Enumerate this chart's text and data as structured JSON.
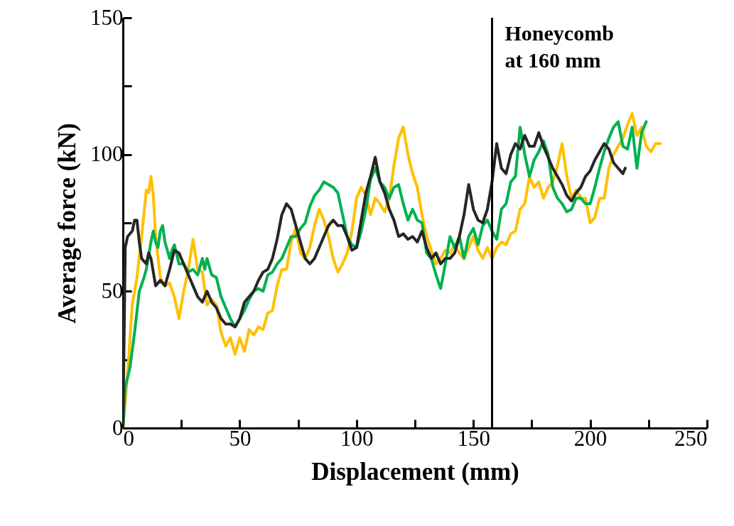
{
  "chart_data": {
    "type": "line",
    "xlabel": "Displacement (mm)",
    "ylabel": "Average force (kN)",
    "xlim": [
      0,
      250
    ],
    "ylim": [
      0,
      150
    ],
    "xticks": [
      0,
      {
        "value": 25,
        "label": null
      },
      50,
      {
        "value": 75,
        "label": null
      },
      100,
      {
        "value": 125,
        "label": null
      },
      150,
      {
        "value": 175,
        "label": null
      },
      200,
      {
        "value": 225,
        "label": null
      },
      250
    ],
    "yticks": [
      0,
      {
        "value": 25,
        "label": null
      },
      50,
      {
        "value": 75,
        "label": null
      },
      100,
      {
        "value": 125,
        "label": null
      },
      150
    ],
    "grid": false,
    "legend": false,
    "marker": "none",
    "line_style": "solid",
    "ref_lines": [
      {
        "axis": "x",
        "value": 158,
        "label": "Honeycomb\nat 160 mm",
        "color": "#000000"
      }
    ],
    "series": [
      {
        "color": "#ffc000",
        "x": [
          0,
          2,
          4,
          6,
          8,
          10,
          11,
          12,
          13,
          14,
          16,
          18,
          20,
          22,
          24,
          26,
          28,
          30,
          32,
          34,
          36,
          38,
          40,
          42,
          44,
          46,
          48,
          50,
          52,
          54,
          56,
          58,
          60,
          62,
          64,
          66,
          68,
          70,
          72,
          74,
          76,
          78,
          80,
          82,
          84,
          86,
          88,
          90,
          92,
          94,
          96,
          98,
          100,
          102,
          104,
          106,
          108,
          110,
          112,
          114,
          116,
          118,
          120,
          122,
          124,
          126,
          128,
          130,
          132,
          134,
          136,
          138,
          140,
          142,
          144,
          146,
          148,
          150,
          152,
          154,
          156,
          158,
          160,
          162,
          164,
          166,
          168,
          170,
          172,
          174,
          176,
          178,
          180,
          182,
          184,
          186,
          188,
          190,
          192,
          194,
          196,
          198,
          200,
          202,
          204,
          206,
          208,
          210,
          212,
          214,
          216,
          218,
          220,
          222,
          224,
          226,
          228,
          230
        ],
        "values": [
          0,
          20,
          45,
          55,
          70,
          87,
          86,
          92,
          85,
          70,
          55,
          52,
          53,
          48,
          40,
          50,
          58,
          69,
          58,
          57,
          45,
          47,
          45,
          35,
          30,
          33,
          27,
          33,
          28,
          36,
          34,
          37,
          36,
          42,
          43,
          52,
          58,
          58,
          68,
          73,
          64,
          62,
          66,
          74,
          80,
          76,
          70,
          62,
          57,
          60,
          64,
          72,
          84,
          88,
          85,
          78,
          84,
          82,
          79,
          84,
          96,
          106,
          110,
          100,
          93,
          88,
          78,
          70,
          65,
          60,
          62,
          65,
          64,
          67,
          64,
          62,
          66,
          70,
          65,
          62,
          66,
          62,
          66,
          68,
          67,
          71,
          72,
          80,
          82,
          92,
          88,
          90,
          84,
          88,
          90,
          96,
          104,
          92,
          84,
          87,
          84,
          84,
          75,
          77,
          84,
          84,
          95,
          100,
          103,
          106,
          111,
          115,
          107,
          110,
          103,
          101,
          104,
          104
        ]
      },
      {
        "color": "#00b050",
        "x": [
          0,
          1,
          3,
          5,
          7,
          9,
          10,
          12,
          13,
          14,
          15,
          16,
          17,
          18,
          20,
          21,
          22,
          24,
          26,
          28,
          30,
          32,
          34,
          35,
          36,
          38,
          40,
          42,
          44,
          46,
          48,
          50,
          52,
          54,
          56,
          58,
          60,
          62,
          64,
          66,
          68,
          70,
          72,
          74,
          76,
          78,
          80,
          82,
          84,
          86,
          88,
          90,
          92,
          94,
          96,
          98,
          100,
          102,
          104,
          106,
          108,
          110,
          112,
          114,
          116,
          118,
          120,
          122,
          124,
          126,
          128,
          130,
          132,
          134,
          136,
          138,
          140,
          142,
          144,
          146,
          148,
          150,
          152,
          154,
          156,
          158,
          160,
          162,
          164,
          166,
          168,
          170,
          172,
          174,
          176,
          178,
          180,
          182,
          184,
          186,
          188,
          190,
          192,
          194,
          196,
          198,
          200,
          202,
          204,
          206,
          208,
          210,
          212,
          214,
          216,
          218,
          220,
          222,
          224
        ],
        "values": [
          0,
          15,
          22,
          35,
          50,
          55,
          58,
          68,
          72,
          68,
          66,
          72,
          74,
          68,
          62,
          65,
          67,
          60,
          60,
          57,
          58,
          56,
          62,
          58,
          62,
          56,
          55,
          48,
          44,
          40,
          37,
          40,
          43,
          47,
          50,
          51,
          50,
          56,
          57,
          60,
          62,
          66,
          70,
          70,
          73,
          75,
          81,
          85,
          87,
          90,
          89,
          88,
          86,
          78,
          70,
          67,
          66,
          72,
          80,
          91,
          95,
          90,
          88,
          84,
          88,
          89,
          82,
          76,
          80,
          76,
          75,
          64,
          62,
          56,
          51,
          60,
          70,
          66,
          70,
          62,
          70,
          73,
          67,
          74,
          76,
          72,
          69,
          80,
          82,
          90,
          92,
          110,
          100,
          92,
          98,
          101,
          105,
          100,
          88,
          84,
          82,
          79,
          80,
          84,
          84,
          82,
          82,
          88,
          95,
          101,
          106,
          110,
          112,
          103,
          102,
          110,
          95,
          108,
          112
        ]
      },
      {
        "color": "#262626",
        "x": [
          0,
          1,
          2,
          4,
          5,
          6,
          7,
          8,
          10,
          11,
          12,
          14,
          16,
          18,
          20,
          22,
          24,
          26,
          28,
          30,
          32,
          34,
          36,
          38,
          40,
          42,
          44,
          46,
          48,
          50,
          52,
          54,
          56,
          58,
          60,
          62,
          64,
          66,
          68,
          70,
          72,
          74,
          76,
          78,
          80,
          82,
          84,
          86,
          88,
          90,
          92,
          94,
          96,
          98,
          100,
          102,
          104,
          106,
          108,
          110,
          112,
          114,
          116,
          118,
          120,
          122,
          124,
          126,
          128,
          130,
          132,
          134,
          136,
          138,
          140,
          142,
          144,
          146,
          148,
          150,
          152,
          154,
          156,
          158,
          160,
          162,
          164,
          166,
          168,
          170,
          172,
          174,
          176,
          178,
          180,
          182,
          184,
          186,
          188,
          190,
          192,
          194,
          196,
          198,
          200,
          202,
          204,
          206,
          208,
          210,
          212,
          214,
          215
        ],
        "values": [
          0,
          66,
          70,
          72,
          76,
          76,
          68,
          62,
          60,
          64,
          62,
          52,
          54,
          52,
          58,
          65,
          64,
          60,
          56,
          52,
          48,
          46,
          50,
          46,
          44,
          40,
          38,
          38,
          37,
          40,
          46,
          48,
          50,
          54,
          57,
          58,
          62,
          69,
          78,
          82,
          80,
          74,
          68,
          62,
          60,
          62,
          66,
          70,
          74,
          76,
          74,
          74,
          70,
          65,
          66,
          76,
          86,
          92,
          99,
          90,
          86,
          80,
          76,
          70,
          71,
          69,
          70,
          68,
          72,
          66,
          62,
          64,
          60,
          62,
          62,
          64,
          70,
          78,
          89,
          80,
          76,
          75,
          80,
          90,
          104,
          95,
          93,
          100,
          104,
          102,
          107,
          103,
          103,
          108,
          103,
          99,
          95,
          92,
          89,
          85,
          83,
          86,
          88,
          92,
          94,
          98,
          101,
          104,
          102,
          97,
          95,
          93,
          95
        ]
      }
    ]
  }
}
